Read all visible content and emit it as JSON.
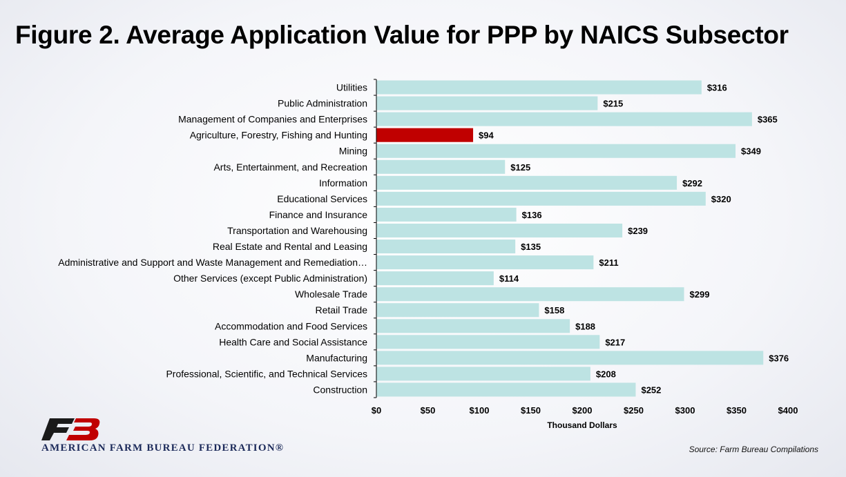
{
  "title": "Figure 2. Average Application Value for PPP by NAICS Subsector",
  "source": "Source: Farm Bureau Compilations",
  "organization": "AMERICAN FARM BUREAU FEDERATION®",
  "logo_icon": "fb-logo-icon",
  "colors": {
    "bar": "#bde3e3",
    "highlight": "#c00000",
    "axis": "#000000"
  },
  "chart_data": {
    "type": "bar",
    "orientation": "horizontal",
    "xlabel": "Thousand Dollars",
    "xlim": [
      0,
      400
    ],
    "xticks": [
      0,
      50,
      100,
      150,
      200,
      250,
      300,
      350,
      400
    ],
    "xtick_labels": [
      "$0",
      "$50",
      "$100",
      "$150",
      "$200",
      "$250",
      "$300",
      "$350",
      "$400"
    ],
    "highlight_category": "Agriculture, Forestry, Fishing and Hunting",
    "grid": false,
    "legend": "none",
    "categories": [
      "Utilities",
      "Public Administration",
      "Management of Companies and Enterprises",
      "Agriculture, Forestry, Fishing and Hunting",
      "Mining",
      "Arts, Entertainment, and Recreation",
      "Information",
      "Educational Services",
      "Finance and Insurance",
      "Transportation and Warehousing",
      "Real Estate and Rental and Leasing",
      "Administrative and Support and Waste Management and Remediation…",
      "Other Services (except Public Administration)",
      "Wholesale Trade",
      "Retail Trade",
      "Accommodation and Food Services",
      "Health Care and Social Assistance",
      "Manufacturing",
      "Professional, Scientific, and Technical Services",
      "Construction"
    ],
    "values": [
      316,
      215,
      365,
      94,
      349,
      125,
      292,
      320,
      136,
      239,
      135,
      211,
      114,
      299,
      158,
      188,
      217,
      376,
      208,
      252
    ],
    "value_labels": [
      "$316",
      "$215",
      "$365",
      "$94",
      "$349",
      "$125",
      "$292",
      "$320",
      "$136",
      "$239",
      "$135",
      "$211",
      "$114",
      "$299",
      "$158",
      "$188",
      "$217",
      "$376",
      "$208",
      "$252"
    ]
  }
}
